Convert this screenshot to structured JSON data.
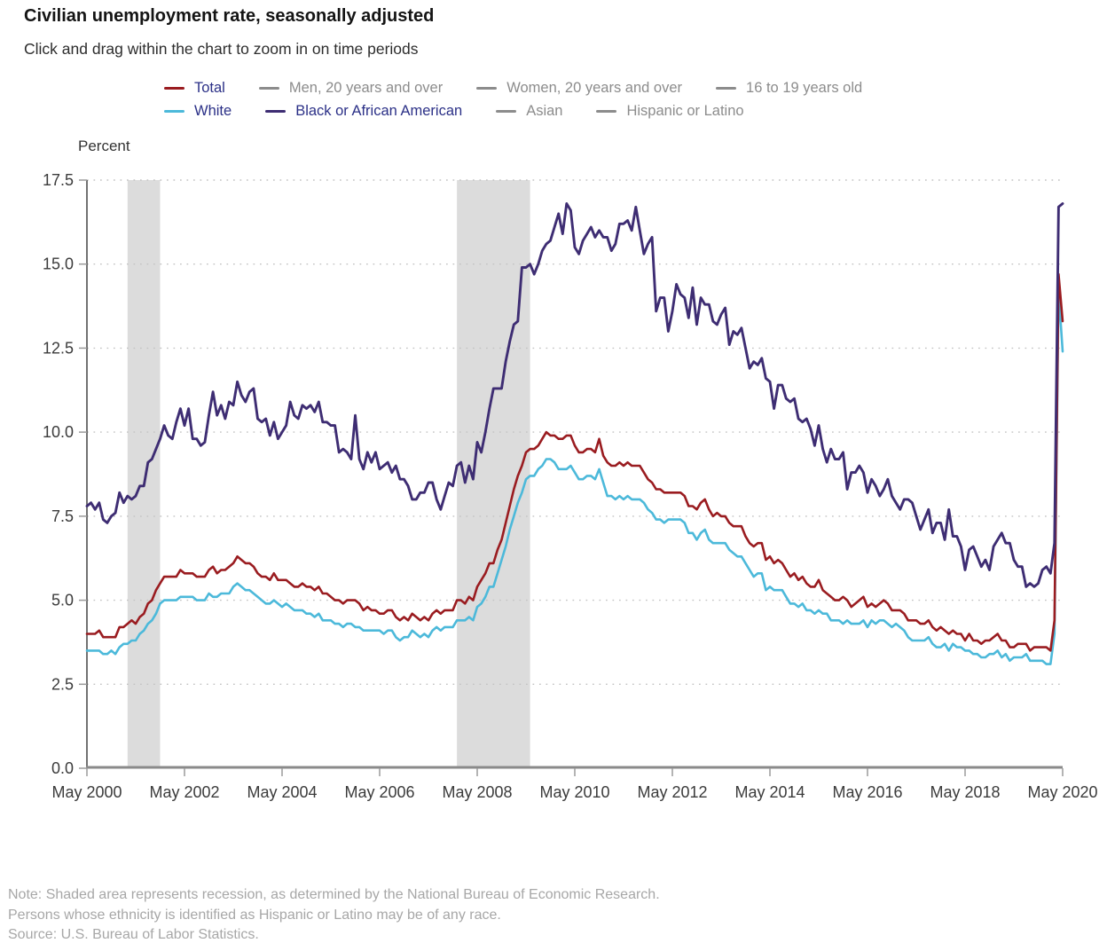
{
  "header": {
    "title": "Civilian unemployment rate, seasonally adjusted",
    "subtitle": "Click and drag within the chart to zoom in on time periods"
  },
  "legend": {
    "active_text_color": "#2b3087",
    "inactive_color": "#8c8c8c",
    "rows": [
      [
        {
          "label": "Total",
          "active": true,
          "color": "#9a1c20"
        },
        {
          "label": "Men, 20 years and over",
          "active": false
        },
        {
          "label": "Women, 20 years and over",
          "active": false
        },
        {
          "label": "16 to 19 years old",
          "active": false
        }
      ],
      [
        {
          "label": "White",
          "active": true,
          "color": "#4cb9da"
        },
        {
          "label": "Black or African American",
          "active": true,
          "color": "#3e2d73"
        },
        {
          "label": "Asian",
          "active": false
        },
        {
          "label": "Hispanic or Latino",
          "active": false
        }
      ]
    ]
  },
  "chart_data": {
    "type": "line",
    "title": "Civilian unemployment rate, seasonally adjusted",
    "ylabel": "Percent",
    "xlabel": "",
    "ylim": [
      0,
      17.5
    ],
    "yticks": [
      0.0,
      2.5,
      5.0,
      7.5,
      10.0,
      12.5,
      15.0,
      17.5
    ],
    "ytick_labels": [
      "0.0",
      "2.5",
      "5.0",
      "7.5",
      "10.0",
      "12.5",
      "15.0",
      "17.5"
    ],
    "x_unit": "month",
    "x_start": "May 2000",
    "x_end": "May 2020",
    "xtick_every_months": 24,
    "xtick_labels": [
      "May 2000",
      "May 2002",
      "May 2004",
      "May 2006",
      "May 2008",
      "May 2010",
      "May 2012",
      "May 2014",
      "May 2016",
      "May 2018",
      "May 2020"
    ],
    "grid": "dotted-horizontal",
    "legend_position": "top",
    "recession_fill": "#dcdcdc",
    "recession_bands_months": [
      [
        10,
        18
      ],
      [
        91,
        109
      ]
    ],
    "recession_band_meaning": "Shaded area represents recession (Mar 2001 - Nov 2001, Dec 2007 - Jun 2009)",
    "series": [
      {
        "name": "Total",
        "color": "#9a1c20",
        "line_width": 2.6,
        "z": 2,
        "values": [
          4.0,
          4.0,
          4.0,
          4.1,
          3.9,
          3.9,
          3.9,
          3.9,
          4.2,
          4.2,
          4.3,
          4.4,
          4.3,
          4.5,
          4.6,
          4.9,
          5.0,
          5.3,
          5.5,
          5.7,
          5.7,
          5.7,
          5.7,
          5.9,
          5.8,
          5.8,
          5.8,
          5.7,
          5.7,
          5.7,
          5.9,
          6.0,
          5.8,
          5.9,
          5.9,
          6.0,
          6.1,
          6.3,
          6.2,
          6.1,
          6.1,
          6.0,
          5.8,
          5.7,
          5.7,
          5.6,
          5.8,
          5.6,
          5.6,
          5.6,
          5.5,
          5.4,
          5.4,
          5.5,
          5.4,
          5.4,
          5.3,
          5.4,
          5.2,
          5.2,
          5.1,
          5.0,
          5.0,
          4.9,
          5.0,
          5.0,
          5.0,
          4.9,
          4.7,
          4.8,
          4.7,
          4.7,
          4.6,
          4.6,
          4.7,
          4.7,
          4.5,
          4.4,
          4.5,
          4.4,
          4.6,
          4.5,
          4.4,
          4.5,
          4.4,
          4.6,
          4.7,
          4.6,
          4.7,
          4.7,
          4.7,
          5.0,
          5.0,
          4.9,
          5.1,
          5.0,
          5.4,
          5.6,
          5.8,
          6.1,
          6.1,
          6.5,
          6.8,
          7.3,
          7.8,
          8.3,
          8.7,
          9.0,
          9.4,
          9.5,
          9.5,
          9.6,
          9.8,
          10.0,
          9.9,
          9.9,
          9.8,
          9.8,
          9.9,
          9.9,
          9.6,
          9.4,
          9.4,
          9.5,
          9.5,
          9.4,
          9.8,
          9.3,
          9.1,
          9.0,
          9.0,
          9.1,
          9.0,
          9.1,
          9.0,
          9.0,
          9.0,
          8.8,
          8.6,
          8.5,
          8.3,
          8.3,
          8.2,
          8.2,
          8.2,
          8.2,
          8.2,
          8.1,
          7.8,
          7.8,
          7.7,
          7.9,
          8.0,
          7.7,
          7.5,
          7.6,
          7.5,
          7.5,
          7.3,
          7.2,
          7.2,
          7.2,
          6.9,
          6.7,
          6.6,
          6.7,
          6.7,
          6.2,
          6.3,
          6.1,
          6.2,
          6.1,
          5.9,
          5.7,
          5.8,
          5.6,
          5.7,
          5.5,
          5.4,
          5.4,
          5.6,
          5.3,
          5.2,
          5.1,
          5.0,
          5.0,
          5.1,
          5.0,
          4.8,
          4.9,
          5.0,
          5.1,
          4.8,
          4.9,
          4.8,
          4.9,
          5.0,
          4.9,
          4.7,
          4.7,
          4.7,
          4.6,
          4.4,
          4.4,
          4.4,
          4.3,
          4.3,
          4.4,
          4.2,
          4.1,
          4.2,
          4.1,
          4.0,
          4.1,
          4.0,
          4.0,
          3.8,
          4.0,
          3.8,
          3.8,
          3.7,
          3.8,
          3.8,
          3.9,
          4.0,
          3.8,
          3.8,
          3.6,
          3.6,
          3.7,
          3.7,
          3.7,
          3.5,
          3.6,
          3.6,
          3.6,
          3.6,
          3.5,
          4.4,
          14.7,
          13.3
        ]
      },
      {
        "name": "White",
        "color": "#4cb9da",
        "line_width": 2.6,
        "z": 1,
        "values": [
          3.5,
          3.5,
          3.5,
          3.5,
          3.4,
          3.4,
          3.5,
          3.4,
          3.6,
          3.7,
          3.7,
          3.8,
          3.8,
          4.0,
          4.1,
          4.3,
          4.4,
          4.6,
          4.9,
          5.0,
          5.0,
          5.0,
          5.0,
          5.1,
          5.1,
          5.1,
          5.1,
          5.0,
          5.0,
          5.0,
          5.2,
          5.1,
          5.1,
          5.2,
          5.2,
          5.2,
          5.4,
          5.5,
          5.4,
          5.3,
          5.3,
          5.2,
          5.1,
          5.0,
          4.9,
          4.9,
          5.0,
          4.9,
          4.8,
          4.9,
          4.8,
          4.7,
          4.7,
          4.7,
          4.6,
          4.6,
          4.5,
          4.6,
          4.4,
          4.4,
          4.4,
          4.3,
          4.3,
          4.2,
          4.3,
          4.3,
          4.2,
          4.2,
          4.1,
          4.1,
          4.1,
          4.1,
          4.1,
          4.0,
          4.1,
          4.1,
          3.9,
          3.8,
          3.9,
          3.9,
          4.1,
          4.0,
          3.9,
          4.0,
          3.9,
          4.1,
          4.2,
          4.1,
          4.2,
          4.2,
          4.2,
          4.4,
          4.4,
          4.4,
          4.5,
          4.4,
          4.8,
          4.9,
          5.1,
          5.4,
          5.4,
          5.8,
          6.2,
          6.6,
          7.1,
          7.5,
          7.9,
          8.2,
          8.6,
          8.7,
          8.7,
          8.9,
          9.0,
          9.2,
          9.2,
          9.1,
          8.9,
          8.9,
          8.9,
          9.0,
          8.8,
          8.6,
          8.6,
          8.7,
          8.7,
          8.6,
          8.9,
          8.5,
          8.1,
          8.1,
          8.0,
          8.1,
          8.0,
          8.1,
          8.0,
          8.0,
          8.0,
          7.9,
          7.7,
          7.6,
          7.4,
          7.4,
          7.3,
          7.4,
          7.4,
          7.4,
          7.4,
          7.3,
          7.0,
          7.0,
          6.8,
          7.0,
          7.1,
          6.8,
          6.7,
          6.7,
          6.7,
          6.7,
          6.5,
          6.4,
          6.3,
          6.3,
          6.1,
          5.9,
          5.7,
          5.8,
          5.8,
          5.3,
          5.4,
          5.3,
          5.3,
          5.3,
          5.1,
          4.9,
          4.9,
          4.8,
          4.9,
          4.7,
          4.7,
          4.6,
          4.7,
          4.6,
          4.6,
          4.4,
          4.4,
          4.4,
          4.3,
          4.4,
          4.3,
          4.3,
          4.3,
          4.4,
          4.2,
          4.4,
          4.3,
          4.4,
          4.4,
          4.3,
          4.2,
          4.3,
          4.2,
          4.1,
          3.9,
          3.8,
          3.8,
          3.8,
          3.8,
          3.9,
          3.7,
          3.6,
          3.6,
          3.7,
          3.5,
          3.7,
          3.6,
          3.6,
          3.5,
          3.5,
          3.4,
          3.4,
          3.3,
          3.3,
          3.4,
          3.4,
          3.5,
          3.3,
          3.4,
          3.2,
          3.3,
          3.3,
          3.3,
          3.4,
          3.2,
          3.2,
          3.2,
          3.2,
          3.1,
          3.1,
          4.0,
          14.2,
          12.4
        ]
      },
      {
        "name": "Black or African American",
        "color": "#3e2d73",
        "line_width": 2.9,
        "z": 3,
        "values": [
          7.8,
          7.9,
          7.7,
          7.9,
          7.4,
          7.3,
          7.5,
          7.6,
          8.2,
          7.9,
          8.1,
          8.0,
          8.1,
          8.4,
          8.4,
          9.1,
          9.2,
          9.5,
          9.8,
          10.2,
          9.9,
          9.8,
          10.3,
          10.7,
          10.2,
          10.7,
          9.8,
          9.8,
          9.6,
          9.7,
          10.5,
          11.2,
          10.5,
          10.8,
          10.4,
          10.9,
          10.8,
          11.5,
          11.1,
          10.9,
          11.2,
          11.3,
          10.4,
          10.3,
          10.4,
          9.9,
          10.3,
          9.8,
          10.0,
          10.2,
          10.9,
          10.5,
          10.4,
          10.8,
          10.7,
          10.8,
          10.6,
          10.9,
          10.3,
          10.3,
          10.2,
          10.2,
          9.4,
          9.5,
          9.4,
          9.2,
          10.5,
          9.2,
          8.9,
          9.4,
          9.1,
          9.4,
          8.9,
          9.0,
          9.1,
          8.8,
          9.0,
          8.6,
          8.6,
          8.4,
          8.0,
          8.0,
          8.2,
          8.2,
          8.5,
          8.5,
          8.0,
          7.7,
          8.1,
          8.5,
          8.4,
          9.0,
          9.1,
          8.5,
          9.0,
          8.6,
          9.7,
          9.4,
          10.0,
          10.7,
          11.3,
          11.3,
          11.3,
          12.1,
          12.7,
          13.2,
          13.3,
          14.9,
          14.9,
          15.0,
          14.7,
          15.0,
          15.4,
          15.6,
          15.7,
          16.1,
          16.5,
          15.9,
          16.8,
          16.6,
          15.5,
          15.3,
          15.7,
          15.9,
          16.1,
          15.8,
          16.0,
          15.8,
          15.8,
          15.4,
          15.6,
          16.2,
          16.2,
          16.3,
          16.0,
          16.7,
          16.0,
          15.3,
          15.6,
          15.8,
          13.6,
          14.0,
          14.0,
          13.0,
          13.6,
          14.4,
          14.1,
          14.0,
          13.4,
          14.3,
          13.2,
          14.0,
          13.8,
          13.8,
          13.3,
          13.2,
          13.5,
          13.7,
          12.6,
          13.0,
          12.9,
          13.1,
          12.5,
          11.9,
          12.1,
          12.0,
          12.2,
          11.6,
          11.5,
          10.7,
          11.4,
          11.4,
          11.0,
          10.9,
          11.0,
          10.4,
          10.3,
          10.4,
          10.1,
          9.6,
          10.2,
          9.5,
          9.1,
          9.5,
          9.2,
          9.2,
          9.4,
          8.3,
          8.8,
          8.8,
          9.0,
          8.8,
          8.2,
          8.6,
          8.4,
          8.1,
          8.3,
          8.6,
          8.1,
          7.9,
          7.7,
          8.0,
          8.0,
          7.9,
          7.5,
          7.1,
          7.4,
          7.7,
          7.0,
          7.3,
          7.3,
          6.8,
          7.7,
          6.9,
          6.9,
          6.6,
          5.9,
          6.5,
          6.6,
          6.3,
          6.0,
          6.2,
          5.9,
          6.6,
          6.8,
          7.0,
          6.7,
          6.7,
          6.2,
          6.0,
          6.0,
          5.4,
          5.5,
          5.4,
          5.5,
          5.9,
          6.0,
          5.8,
          6.7,
          16.7,
          16.8
        ]
      }
    ]
  },
  "notes": [
    "Note: Shaded area represents recession, as determined by the National Bureau of Economic Research.",
    "Persons whose ethnicity is identified as Hispanic or Latino may be of any race.",
    "Source: U.S. Bureau of Labor Statistics."
  ]
}
